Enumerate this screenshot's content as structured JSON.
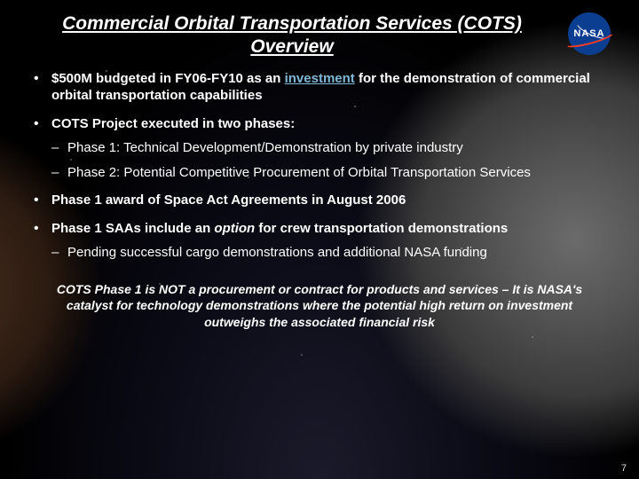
{
  "title": "Commercial Orbital Transportation Services (COTS) Overview",
  "logo": {
    "text": "NASA"
  },
  "bullets": [
    {
      "lead": "$500M budgeted in FY06-FY10 as an ",
      "emphasis": "investment",
      "tail": " for the demonstration of commercial orbital transportation capabilities",
      "emphasis_class": "invest",
      "sub": []
    },
    {
      "lead": "COTS Project executed in two phases:",
      "sub": [
        "Phase 1: Technical Development/Demonstration by private industry",
        "Phase 2: Potential Competitive Procurement of Orbital Transportation Services"
      ]
    },
    {
      "lead": "Phase 1 award of Space Act Agreements in August 2006",
      "sub": []
    },
    {
      "lead": "Phase 1 SAAs include an ",
      "emphasis": "option",
      "tail": " for crew transportation demonstrations",
      "emphasis_class": "option",
      "sub": [
        "Pending successful cargo demonstrations and additional NASA funding"
      ]
    }
  ],
  "callout": "COTS Phase 1 is NOT a procurement or contract for products and services – It is NASA's catalyst for technology demonstrations where the potential high return on investment outweighs the associated financial risk",
  "page_number": "7",
  "colors": {
    "nasa_blue": "#0b3d91",
    "nasa_red": "#fc3d21",
    "investment_link": "#7fb8d4"
  }
}
